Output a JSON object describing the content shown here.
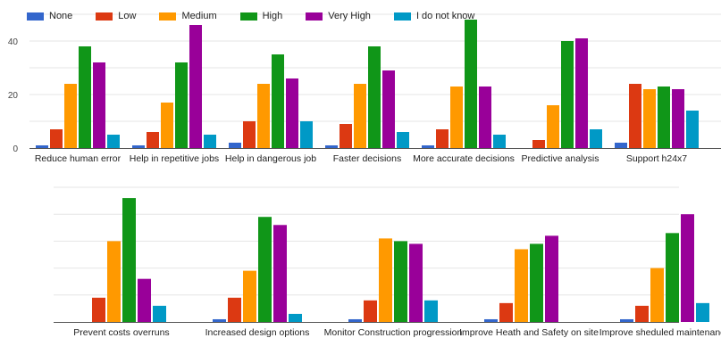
{
  "legend": [
    {
      "label": "None",
      "color": "#3366cc"
    },
    {
      "label": "Low",
      "color": "#dc3912"
    },
    {
      "label": "Medium",
      "color": "#ff9900"
    },
    {
      "label": "High",
      "color": "#109618"
    },
    {
      "label": "Very High",
      "color": "#990099"
    },
    {
      "label": "I do not know",
      "color": "#0099c6"
    }
  ],
  "chart_data": [
    {
      "type": "bar",
      "categories": [
        "Reduce human error",
        "Help in repetitive jobs",
        "Help in dangerous job",
        "Faster decisions",
        "More accurate decisions",
        "Predictive analysis",
        "Support h24x7"
      ],
      "ylim": [
        0,
        50
      ],
      "yticks": [
        "0",
        "20",
        "40"
      ],
      "grid": true,
      "legend_position": "top-left",
      "series": [
        {
          "name": "None",
          "color": "#3366cc",
          "values": [
            1,
            1,
            2,
            1,
            1,
            0,
            2
          ]
        },
        {
          "name": "Low",
          "color": "#dc3912",
          "values": [
            7,
            6,
            10,
            9,
            7,
            3,
            24
          ]
        },
        {
          "name": "Medium",
          "color": "#ff9900",
          "values": [
            24,
            17,
            24,
            24,
            23,
            16,
            22
          ]
        },
        {
          "name": "High",
          "color": "#109618",
          "values": [
            38,
            32,
            35,
            38,
            48,
            40,
            23
          ]
        },
        {
          "name": "Very High",
          "color": "#990099",
          "values": [
            32,
            46,
            26,
            29,
            23,
            41,
            22
          ]
        },
        {
          "name": "I do not know",
          "color": "#0099c6",
          "values": [
            5,
            5,
            10,
            6,
            5,
            7,
            14
          ]
        }
      ]
    },
    {
      "type": "bar",
      "categories": [
        "Prevent costs overruns",
        "Increased design options",
        "Monitor Construction progression",
        "Improve Heath and Safety on site",
        "Improve sheduled maintenance"
      ],
      "ylim": [
        0,
        50
      ],
      "yticks": [],
      "grid": true,
      "series": [
        {
          "name": "None",
          "color": "#3366cc",
          "values": [
            0,
            1,
            1,
            1,
            1
          ]
        },
        {
          "name": "Low",
          "color": "#dc3912",
          "values": [
            9,
            9,
            8,
            7,
            6
          ]
        },
        {
          "name": "Medium",
          "color": "#ff9900",
          "values": [
            30,
            19,
            31,
            27,
            20
          ]
        },
        {
          "name": "High",
          "color": "#109618",
          "values": [
            46,
            39,
            30,
            29,
            33
          ]
        },
        {
          "name": "Very High",
          "color": "#990099",
          "values": [
            16,
            36,
            29,
            32,
            40
          ]
        },
        {
          "name": "I do not know",
          "color": "#0099c6",
          "values": [
            6,
            3,
            8,
            0,
            7
          ]
        }
      ]
    }
  ]
}
